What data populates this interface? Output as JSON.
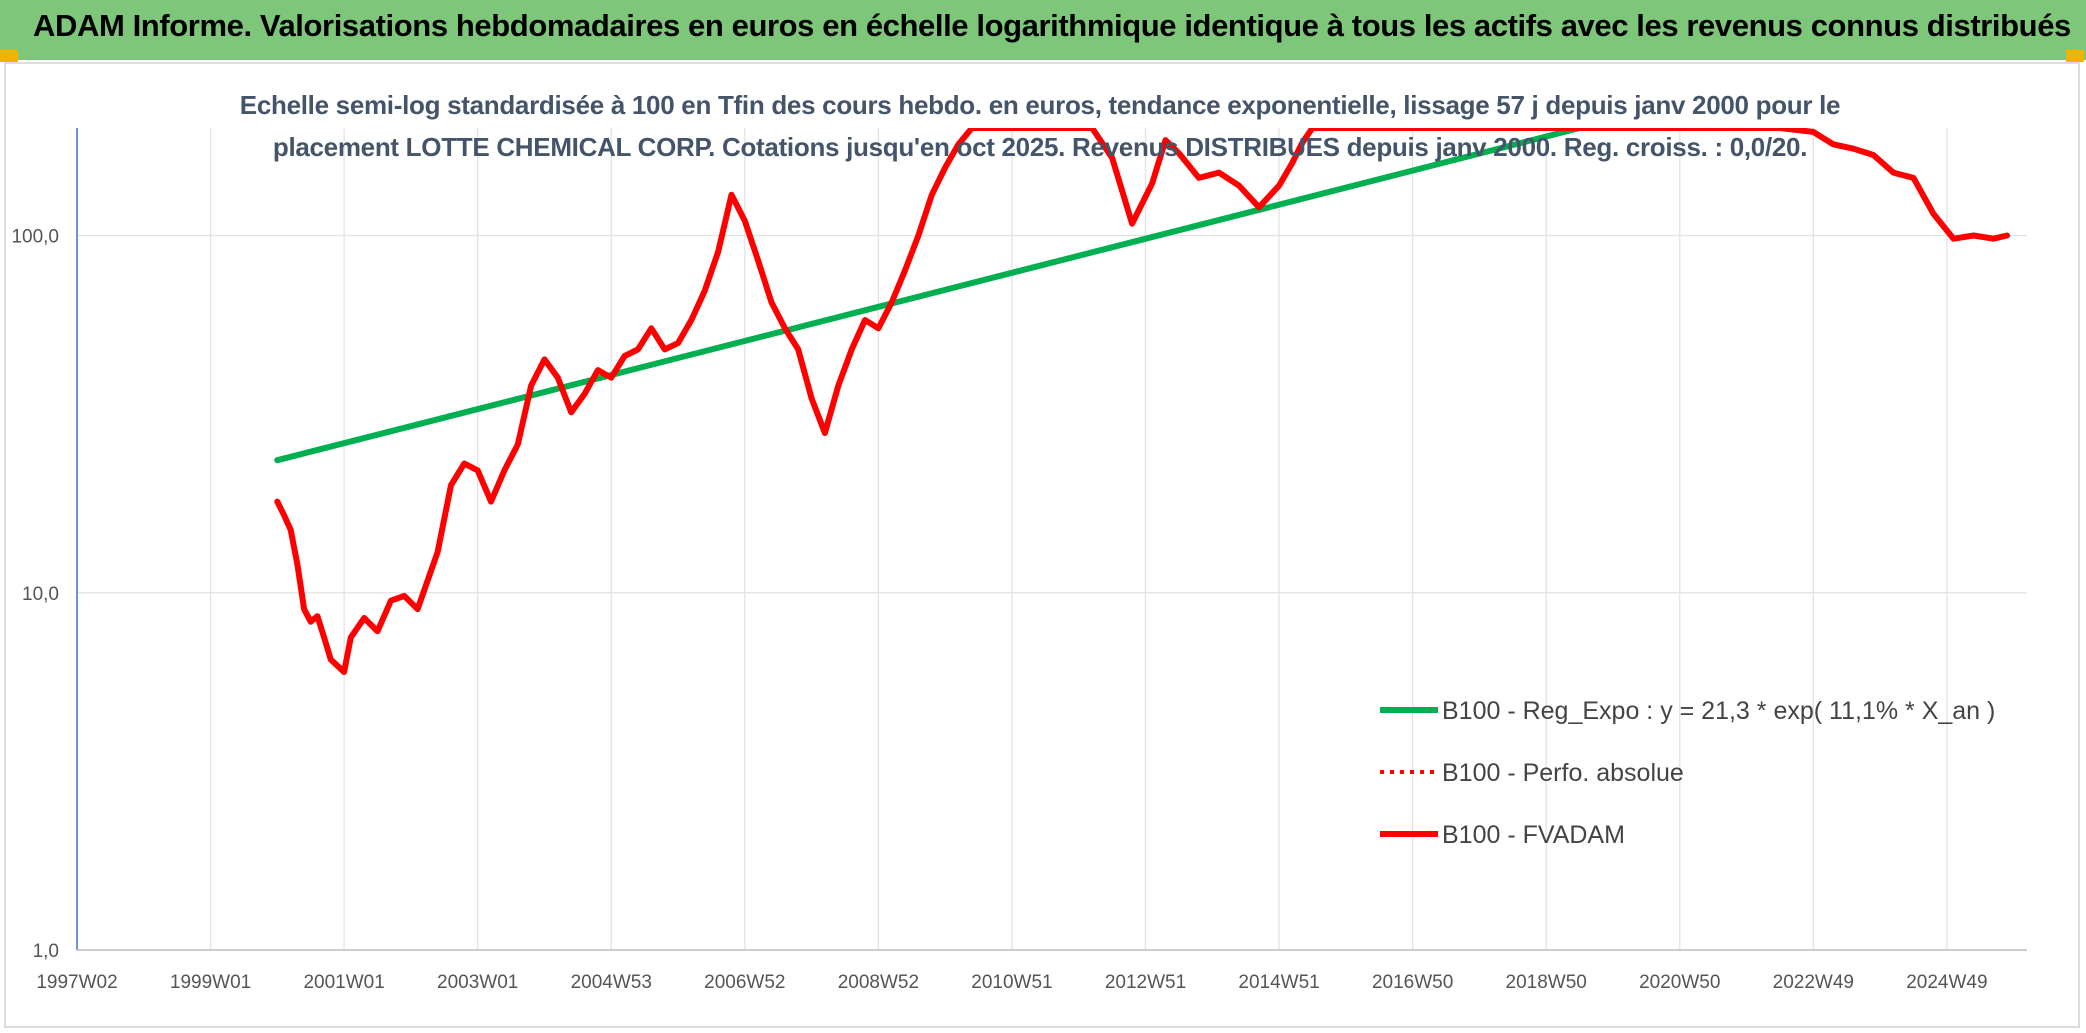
{
  "banner": {
    "title": "ADAM Informe. Valorisations hebdomadaires en euros en échelle logarithmique identique à tous les actifs avec les revenus connus distribués"
  },
  "chart_data": {
    "type": "line",
    "title_line1": "Echelle semi-log standardisée à 100 en Tfin des cours hebdo. en euros, tendance exponentielle, lissage 57 j depuis janv 2000 pour le",
    "title_line2": "placement LOTTE CHEMICAL CORP. Cotations jusqu'en oct 2025. Revenus DISTRIBUES depuis janv 2000. Reg. croiss. : 0,0/20.",
    "y_scale": "log",
    "ylim": [
      1,
      200
    ],
    "xlim": [
      1997.0,
      2026.2
    ],
    "y_tick_labels": [
      "1,0",
      "10,0",
      "100,0"
    ],
    "y_tick_values": [
      1,
      10,
      100
    ],
    "x_tick_labels": [
      "1997W02",
      "1999W01",
      "2001W01",
      "2003W01",
      "2004W53",
      "2006W52",
      "2008W52",
      "2010W51",
      "2012W51",
      "2014W51",
      "2016W50",
      "2018W50",
      "2020W50",
      "2022W49",
      "2024W49"
    ],
    "x_tick_values": [
      1997,
      1999,
      2001,
      2003,
      2005,
      2007,
      2009,
      2011,
      2013,
      2015,
      2017,
      2019,
      2021,
      2023,
      2025
    ],
    "grid": true,
    "legend_position": "bottom-right",
    "series": [
      {
        "name": "B100 - Reg_Expo : y = 21,3 * exp( 11,1% *  X_an )",
        "color": "#00b050",
        "style": "solid",
        "x": [
          2000.0,
          2019.5
        ],
        "y": [
          23.5,
          200
        ]
      },
      {
        "name": "B100 - Perfo. absolue",
        "color": "#ff0000",
        "style": "dotted",
        "x": [],
        "y": []
      },
      {
        "name": "B100 - FVADAM",
        "color": "#ff0000",
        "style": "solid",
        "x": [
          2000.0,
          2000.1,
          2000.2,
          2000.3,
          2000.4,
          2000.5,
          2000.6,
          2000.7,
          2000.8,
          2001.0,
          2001.1,
          2001.3,
          2001.5,
          2001.7,
          2001.9,
          2002.1,
          2002.4,
          2002.6,
          2002.8,
          2003.0,
          2003.2,
          2003.4,
          2003.6,
          2003.8,
          2004.0,
          2004.2,
          2004.4,
          2004.6,
          2004.8,
          2005.0,
          2005.2,
          2005.4,
          2005.6,
          2005.8,
          2006.0,
          2006.2,
          2006.4,
          2006.6,
          2006.8,
          2007.0,
          2007.2,
          2007.4,
          2007.6,
          2007.8,
          2008.0,
          2008.2,
          2008.4,
          2008.6,
          2008.8,
          2009.0,
          2009.2,
          2009.4,
          2009.6,
          2009.8,
          2010.0,
          2010.2,
          2010.4,
          2010.6,
          2010.8,
          2011.0,
          2011.3,
          2011.6,
          2011.9,
          2012.2,
          2012.5,
          2012.8,
          2013.1,
          2013.3,
          2013.5,
          2013.8,
          2014.1,
          2014.4,
          2014.7,
          2015.0,
          2015.2,
          2015.35,
          2015.5,
          2015.65,
          2015.8,
          2016.0,
          2016.5,
          2017.0,
          2017.5,
          2018.0,
          2018.5,
          2019.0,
          2019.5,
          2020.0,
          2020.3,
          2020.6,
          2021.0,
          2021.5,
          2022.0,
          2022.5,
          2023.0,
          2023.3,
          2023.6,
          2023.9,
          2024.2,
          2024.5,
          2024.8,
          2025.1,
          2025.4,
          2025.7,
          2025.9
        ],
        "y": [
          18,
          16.5,
          15,
          12,
          9,
          8.3,
          8.6,
          7.5,
          6.5,
          6,
          7.5,
          8.5,
          7.8,
          9.5,
          9.8,
          9,
          13,
          20,
          23,
          22,
          18,
          22,
          26,
          38,
          45,
          40,
          32,
          36,
          42,
          40,
          46,
          48,
          55,
          48,
          50,
          58,
          70,
          90,
          130,
          110,
          85,
          65,
          55,
          48,
          35,
          28,
          38,
          48,
          58,
          55,
          65,
          80,
          100,
          130,
          155,
          180,
          200,
          200,
          200,
          200,
          200,
          200,
          200,
          200,
          165,
          108,
          140,
          185,
          170,
          145,
          150,
          138,
          120,
          138,
          160,
          182,
          200,
          200,
          200,
          200,
          200,
          200,
          200,
          200,
          200,
          200,
          200,
          200,
          200,
          200,
          200,
          200,
          200,
          200,
          195,
          180,
          175,
          168,
          150,
          145,
          115,
          98,
          100,
          98,
          100
        ]
      }
    ]
  }
}
